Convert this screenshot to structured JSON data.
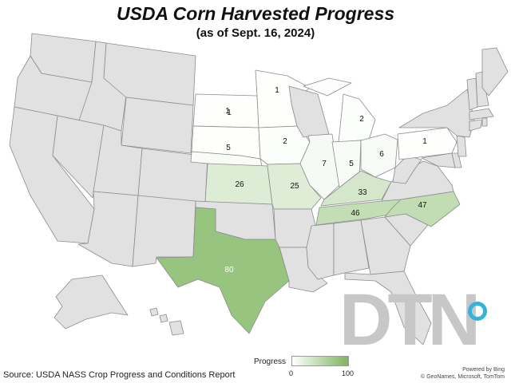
{
  "title": "USDA Corn Harvested Progress",
  "subtitle": "(as of Sept. 16, 2024)",
  "source": "Source: USDA NASS Crop Progress and Conditions Report",
  "legend": {
    "title": "Progress",
    "min": "0",
    "max": "100",
    "color_low": "#ffffff",
    "color_high": "#7db55e"
  },
  "attribution": {
    "line1": "Powered by Bing",
    "line2": "© GeoNames, Microsoft, TomTom"
  },
  "logo": {
    "text": "DTN"
  },
  "colors": {
    "no_data": "#e1e1e1",
    "border": "#8c8c8c"
  },
  "states": {
    "ND": {
      "value": 1
    },
    "SD": {
      "value": 1
    },
    "NE": {
      "value": 5
    },
    "KS": {
      "value": 26
    },
    "TX": {
      "value": 80
    },
    "MN": {
      "value": 1
    },
    "IA": {
      "value": 2
    },
    "MO": {
      "value": 25
    },
    "WI": {
      "value": null
    },
    "IL": {
      "value": 7
    },
    "IN": {
      "value": 5
    },
    "MI": {
      "value": 2
    },
    "OH": {
      "value": 6
    },
    "PA": {
      "value": 1
    },
    "KY": {
      "value": 33
    },
    "TN": {
      "value": 46
    },
    "NC": {
      "value": 47
    }
  },
  "labels": {
    "ND": "1",
    "SD": "1",
    "NE": "5",
    "KS": "26",
    "TX": "80",
    "MN": "1",
    "IA": "2",
    "MO": "25",
    "IL": "7",
    "IN": "5",
    "MI": "2",
    "OH": "6",
    "PA": "1",
    "KY": "33",
    "TN": "46",
    "NC": "47"
  }
}
